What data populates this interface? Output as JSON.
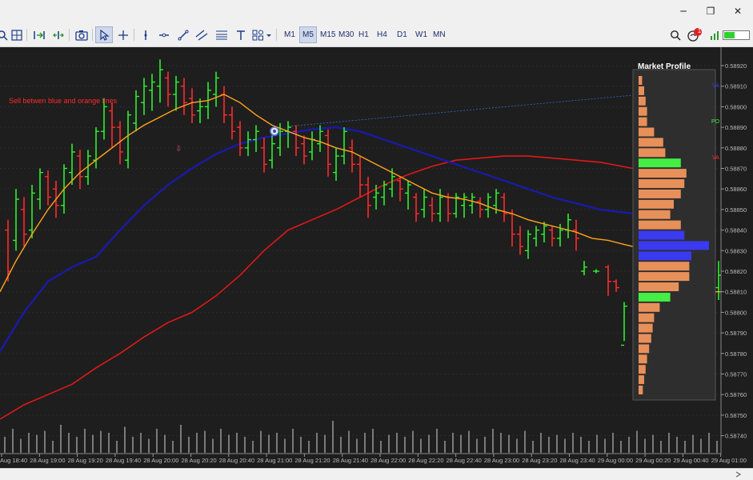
{
  "window": {
    "minimize_glyph": "─",
    "restore_glyph": "❐",
    "close_glyph": "✕"
  },
  "toolbar": {
    "icons": [
      "zoom-in-icon",
      "grid-icon",
      "autoscroll-icon",
      "chart-shift-icon",
      "screenshot-icon",
      "cursor-icon",
      "crosshair-icon",
      "vertical-line-icon",
      "horizontal-line-icon",
      "trendline-icon",
      "channel-icon",
      "fibonacci-icon",
      "text-icon",
      "shapes-icon"
    ],
    "timeframes": [
      "M1",
      "M5",
      "M15",
      "M30",
      "H1",
      "H4",
      "D1",
      "W1",
      "MN"
    ],
    "active_timeframe": "M5",
    "notification_count": "1"
  },
  "chart": {
    "annotation": "Sell betwen blue and orange lines",
    "arrow_glyph": "⇩",
    "price_labels": [
      "0.58920",
      "0.58910",
      "0.58900",
      "0.58890",
      "0.58880",
      "0.58870",
      "0.58860",
      "0.58850",
      "0.58840",
      "0.58830",
      "0.58820",
      "0.58810",
      "0.58800",
      "0.58790",
      "0.58780",
      "0.58770",
      "0.58760",
      "0.58750",
      "0.58740"
    ],
    "time_labels": [
      "28 Aug 18:40",
      "28 Aug 19:00",
      "28 Aug 19:20",
      "28 Aug 19:40",
      "28 Aug 20:00",
      "28 Aug 20:20",
      "28 Aug 20:40",
      "28 Aug 21:00",
      "28 Aug 21:20",
      "28 Aug 21:40",
      "28 Aug 22:00",
      "28 Aug 22:20",
      "28 Aug 22:40",
      "28 Aug 23:00",
      "28 Aug 23:20",
      "28 Aug 23:40",
      "29 Aug 00:00",
      "29 Aug 00:20",
      "29 Aug 00:40",
      "29 Aug 01:00"
    ],
    "market_profile": {
      "title": "Market Profile",
      "labels": [
        "VA",
        "PO",
        "VA"
      ],
      "colors": {
        "normal": "#e8905a",
        "value_area_high_low": "#44ee44",
        "poc": "#3a3af0"
      }
    },
    "colors": {
      "bull": "#2ef02e",
      "bear": "#ff2a2a",
      "fast_ma": "#ffa41c",
      "mid_ma": "#1a1aa8",
      "slow_ma": "#e01818",
      "background": "#1e1e1e"
    }
  }
}
